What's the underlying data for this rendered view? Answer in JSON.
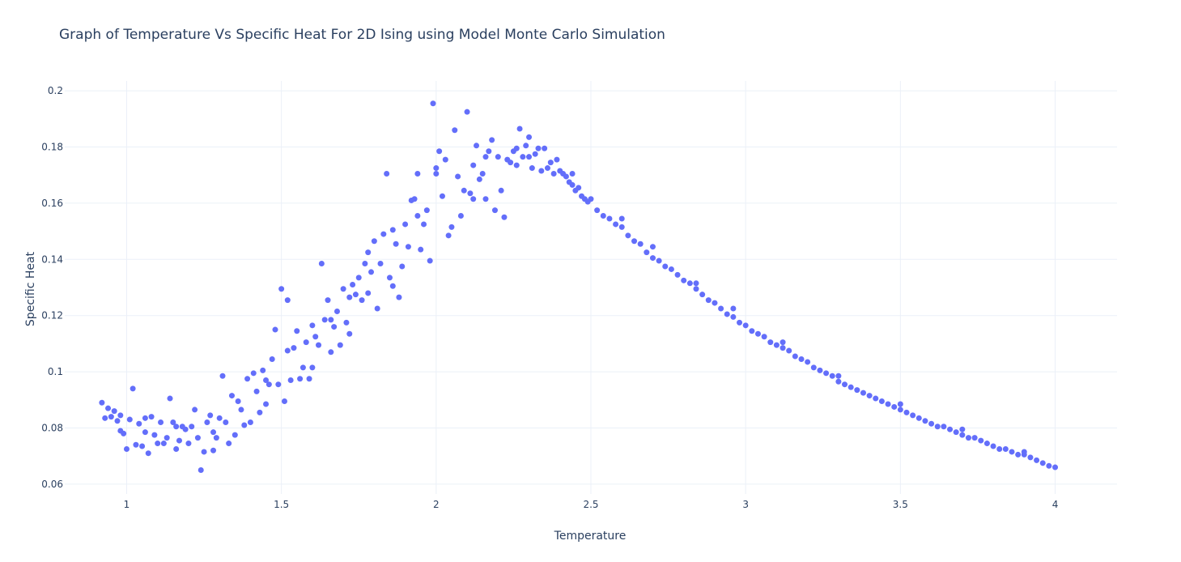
{
  "chart_data": {
    "type": "scatter",
    "title": "Graph of Temperature Vs Specific Heat For 2D Ising using Model Monte Carlo Simulation",
    "xlabel": "Temperature",
    "ylabel": "Specific Heat",
    "xlim": [
      0.8,
      4.2
    ],
    "ylim": [
      0.0565,
      0.2035
    ],
    "xticks": [
      1,
      1.5,
      2,
      2.5,
      3,
      3.5,
      4
    ],
    "xtick_labels": [
      "1",
      "1.5",
      "2",
      "2.5",
      "3",
      "3.5",
      "4"
    ],
    "yticks": [
      0.06,
      0.08,
      0.1,
      0.12,
      0.14,
      0.16,
      0.18,
      0.2
    ],
    "ytick_labels": [
      "0.06",
      "0.08",
      "0.1",
      "0.12",
      "0.14",
      "0.16",
      "0.18",
      "0.2"
    ],
    "grid": true,
    "marker_color": "#636efa",
    "points": [
      [
        0.92,
        0.089
      ],
      [
        0.93,
        0.0835
      ],
      [
        0.94,
        0.087
      ],
      [
        0.95,
        0.084
      ],
      [
        0.96,
        0.086
      ],
      [
        0.97,
        0.0825
      ],
      [
        0.98,
        0.079
      ],
      [
        0.99,
        0.078
      ],
      [
        1.0,
        0.0725
      ],
      [
        1.01,
        0.083
      ],
      [
        1.02,
        0.094
      ],
      [
        1.03,
        0.074
      ],
      [
        1.04,
        0.0815
      ],
      [
        1.05,
        0.0735
      ],
      [
        1.06,
        0.0785
      ],
      [
        1.07,
        0.071
      ],
      [
        1.08,
        0.084
      ],
      [
        1.09,
        0.0775
      ],
      [
        1.1,
        0.0745
      ],
      [
        1.11,
        0.082
      ],
      [
        1.12,
        0.0745
      ],
      [
        1.13,
        0.0765
      ],
      [
        1.14,
        0.0905
      ],
      [
        1.15,
        0.082
      ],
      [
        1.16,
        0.0725
      ],
      [
        1.17,
        0.0755
      ],
      [
        1.18,
        0.0805
      ],
      [
        1.19,
        0.0795
      ],
      [
        1.2,
        0.0745
      ],
      [
        1.21,
        0.0805
      ],
      [
        1.22,
        0.0865
      ],
      [
        1.23,
        0.0765
      ],
      [
        1.24,
        0.065
      ],
      [
        1.25,
        0.0715
      ],
      [
        1.26,
        0.082
      ],
      [
        1.27,
        0.0845
      ],
      [
        1.28,
        0.072
      ],
      [
        1.29,
        0.0765
      ],
      [
        1.3,
        0.0835
      ],
      [
        1.31,
        0.0985
      ],
      [
        1.32,
        0.082
      ],
      [
        1.33,
        0.0745
      ],
      [
        1.34,
        0.0915
      ],
      [
        1.35,
        0.0775
      ],
      [
        1.36,
        0.0895
      ],
      [
        1.37,
        0.0865
      ],
      [
        1.38,
        0.081
      ],
      [
        1.39,
        0.0975
      ],
      [
        1.4,
        0.082
      ],
      [
        1.41,
        0.0995
      ],
      [
        1.42,
        0.093
      ],
      [
        1.43,
        0.0855
      ],
      [
        1.44,
        0.1005
      ],
      [
        1.45,
        0.097
      ],
      [
        1.46,
        0.0955
      ],
      [
        1.47,
        0.1045
      ],
      [
        1.48,
        0.115
      ],
      [
        1.49,
        0.0955
      ],
      [
        1.5,
        0.1295
      ],
      [
        1.51,
        0.0895
      ],
      [
        1.52,
        0.1255
      ],
      [
        1.53,
        0.097
      ],
      [
        1.54,
        0.1085
      ],
      [
        1.55,
        0.1145
      ],
      [
        1.56,
        0.0975
      ],
      [
        1.57,
        0.1015
      ],
      [
        1.58,
        0.1105
      ],
      [
        1.59,
        0.0975
      ],
      [
        1.6,
        0.1165
      ],
      [
        1.61,
        0.1125
      ],
      [
        1.62,
        0.1095
      ],
      [
        1.63,
        0.1385
      ],
      [
        1.64,
        0.1185
      ],
      [
        1.65,
        0.1255
      ],
      [
        1.66,
        0.107
      ],
      [
        1.67,
        0.116
      ],
      [
        1.68,
        0.1215
      ],
      [
        1.69,
        0.1095
      ],
      [
        1.7,
        0.1295
      ],
      [
        1.71,
        0.1175
      ],
      [
        1.72,
        0.1265
      ],
      [
        1.73,
        0.131
      ],
      [
        1.74,
        0.1275
      ],
      [
        1.75,
        0.1335
      ],
      [
        1.76,
        0.1255
      ],
      [
        1.77,
        0.1385
      ],
      [
        1.78,
        0.128
      ],
      [
        1.79,
        0.1355
      ],
      [
        1.8,
        0.1465
      ],
      [
        1.81,
        0.1225
      ],
      [
        1.82,
        0.1385
      ],
      [
        1.83,
        0.149
      ],
      [
        1.84,
        0.1705
      ],
      [
        1.85,
        0.1335
      ],
      [
        1.86,
        0.1505
      ],
      [
        1.87,
        0.1455
      ],
      [
        1.88,
        0.1265
      ],
      [
        1.89,
        0.1375
      ],
      [
        1.9,
        0.1525
      ],
      [
        1.91,
        0.1445
      ],
      [
        1.92,
        0.161
      ],
      [
        1.93,
        0.1615
      ],
      [
        1.94,
        0.1705
      ],
      [
        1.95,
        0.1435
      ],
      [
        1.96,
        0.1525
      ],
      [
        1.97,
        0.1575
      ],
      [
        1.98,
        0.1395
      ],
      [
        1.99,
        0.1955
      ],
      [
        2.0,
        0.1725
      ],
      [
        2.01,
        0.1785
      ],
      [
        2.02,
        0.1625
      ],
      [
        2.03,
        0.1755
      ],
      [
        2.04,
        0.1485
      ],
      [
        2.05,
        0.1515
      ],
      [
        2.06,
        0.186
      ],
      [
        2.07,
        0.1695
      ],
      [
        2.08,
        0.1555
      ],
      [
        2.09,
        0.1645
      ],
      [
        2.1,
        0.1925
      ],
      [
        2.11,
        0.1635
      ],
      [
        2.12,
        0.1735
      ],
      [
        2.13,
        0.1805
      ],
      [
        2.14,
        0.1685
      ],
      [
        2.15,
        0.1705
      ],
      [
        2.16,
        0.1615
      ],
      [
        2.17,
        0.1785
      ],
      [
        2.18,
        0.1825
      ],
      [
        2.19,
        0.1575
      ],
      [
        2.2,
        0.1765
      ],
      [
        2.21,
        0.1645
      ],
      [
        2.22,
        0.155
      ],
      [
        2.23,
        0.1755
      ],
      [
        2.24,
        0.1745
      ],
      [
        2.25,
        0.1785
      ],
      [
        2.26,
        0.1795
      ],
      [
        2.27,
        0.1865
      ],
      [
        2.28,
        0.1765
      ],
      [
        2.29,
        0.1805
      ],
      [
        2.3,
        0.1835
      ],
      [
        2.31,
        0.1725
      ],
      [
        2.32,
        0.1775
      ],
      [
        2.33,
        0.1795
      ],
      [
        2.34,
        0.1715
      ],
      [
        2.35,
        0.1795
      ],
      [
        2.36,
        0.1725
      ],
      [
        2.37,
        0.1745
      ],
      [
        2.38,
        0.1705
      ],
      [
        2.39,
        0.1755
      ],
      [
        2.4,
        0.1715
      ],
      [
        2.41,
        0.1705
      ],
      [
        2.42,
        0.1695
      ],
      [
        2.43,
        0.1675
      ],
      [
        2.44,
        0.1665
      ],
      [
        2.45,
        0.1645
      ],
      [
        2.46,
        0.1655
      ],
      [
        2.47,
        0.1625
      ],
      [
        2.48,
        0.1615
      ],
      [
        2.49,
        0.1605
      ],
      [
        2.5,
        0.1615
      ],
      [
        2.52,
        0.1575
      ],
      [
        2.54,
        0.1555
      ],
      [
        2.56,
        0.1545
      ],
      [
        2.58,
        0.1525
      ],
      [
        2.6,
        0.1515
      ],
      [
        2.62,
        0.1485
      ],
      [
        2.64,
        0.1465
      ],
      [
        2.66,
        0.1455
      ],
      [
        2.68,
        0.1425
      ],
      [
        2.7,
        0.1405
      ],
      [
        2.72,
        0.1395
      ],
      [
        2.74,
        0.1375
      ],
      [
        2.76,
        0.1365
      ],
      [
        2.78,
        0.1345
      ],
      [
        2.8,
        0.1325
      ],
      [
        2.82,
        0.1315
      ],
      [
        2.84,
        0.1295
      ],
      [
        2.86,
        0.1275
      ],
      [
        2.88,
        0.1255
      ],
      [
        2.9,
        0.1245
      ],
      [
        2.92,
        0.1225
      ],
      [
        2.94,
        0.1205
      ],
      [
        2.96,
        0.1195
      ],
      [
        2.98,
        0.1175
      ],
      [
        3.0,
        0.1165
      ],
      [
        3.02,
        0.1145
      ],
      [
        3.04,
        0.1135
      ],
      [
        3.06,
        0.1125
      ],
      [
        3.08,
        0.1105
      ],
      [
        3.1,
        0.1095
      ],
      [
        3.12,
        0.1085
      ],
      [
        3.14,
        0.1075
      ],
      [
        3.16,
        0.1055
      ],
      [
        3.18,
        0.1045
      ],
      [
        3.2,
        0.1035
      ],
      [
        3.22,
        0.1015
      ],
      [
        3.24,
        0.1005
      ],
      [
        3.26,
        0.0995
      ],
      [
        3.28,
        0.0985
      ],
      [
        3.3,
        0.0965
      ],
      [
        3.32,
        0.0955
      ],
      [
        3.34,
        0.0945
      ],
      [
        3.36,
        0.0935
      ],
      [
        3.38,
        0.0925
      ],
      [
        3.4,
        0.0915
      ],
      [
        3.42,
        0.0905
      ],
      [
        3.44,
        0.0895
      ],
      [
        3.46,
        0.0885
      ],
      [
        3.48,
        0.0875
      ],
      [
        3.5,
        0.0865
      ],
      [
        3.52,
        0.0855
      ],
      [
        3.54,
        0.0845
      ],
      [
        3.56,
        0.0835
      ],
      [
        3.58,
        0.0825
      ],
      [
        3.6,
        0.0815
      ],
      [
        3.62,
        0.0805
      ],
      [
        3.64,
        0.0805
      ],
      [
        3.66,
        0.0795
      ],
      [
        3.68,
        0.0785
      ],
      [
        3.7,
        0.0775
      ],
      [
        3.72,
        0.0765
      ],
      [
        3.74,
        0.0765
      ],
      [
        3.76,
        0.0755
      ],
      [
        3.78,
        0.0745
      ],
      [
        3.8,
        0.0735
      ],
      [
        3.82,
        0.0725
      ],
      [
        3.84,
        0.0725
      ],
      [
        3.86,
        0.0715
      ],
      [
        3.88,
        0.0705
      ],
      [
        3.9,
        0.0705
      ],
      [
        3.92,
        0.0695
      ],
      [
        3.94,
        0.0685
      ],
      [
        3.96,
        0.0675
      ],
      [
        3.98,
        0.0665
      ],
      [
        4.0,
        0.066
      ],
      [
        2.0,
        0.1705
      ],
      [
        1.94,
        0.1555
      ],
      [
        2.12,
        0.1615
      ],
      [
        2.26,
        0.1735
      ],
      [
        1.86,
        0.1305
      ],
      [
        1.72,
        0.1135
      ],
      [
        1.6,
        0.1015
      ],
      [
        1.45,
        0.0885
      ],
      [
        1.28,
        0.0785
      ],
      [
        1.16,
        0.0805
      ],
      [
        1.06,
        0.0835
      ],
      [
        0.98,
        0.0845
      ],
      [
        2.44,
        0.1705
      ],
      [
        2.6,
        0.1545
      ],
      [
        2.7,
        0.1445
      ],
      [
        2.84,
        0.1315
      ],
      [
        2.96,
        0.1225
      ],
      [
        3.12,
        0.1105
      ],
      [
        3.3,
        0.0985
      ],
      [
        3.5,
        0.0885
      ],
      [
        3.7,
        0.0795
      ],
      [
        3.9,
        0.0715
      ],
      [
        2.16,
        0.1765
      ],
      [
        2.3,
        0.1765
      ],
      [
        1.78,
        0.1425
      ],
      [
        1.66,
        0.1185
      ],
      [
        1.52,
        0.1075
      ]
    ]
  }
}
